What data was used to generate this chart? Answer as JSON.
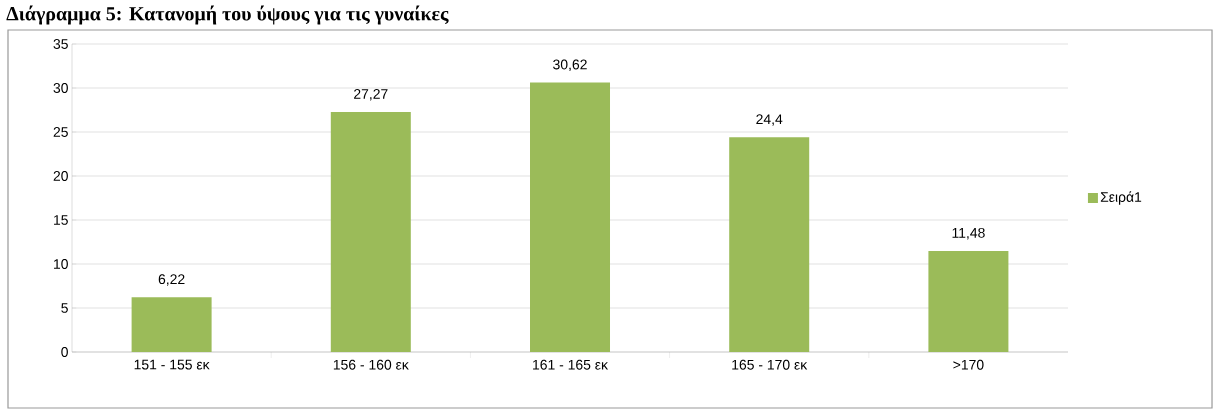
{
  "chart_data": {
    "type": "bar",
    "title": "Διάγραμμα 5: Κατανομή του ύψους για τις γυναίκες",
    "categories": [
      "151 - 155 εκ",
      "156 - 160 εκ",
      "161 - 165 εκ",
      "165 - 170 εκ",
      ">170"
    ],
    "series": [
      {
        "name": "Σειρά1",
        "color": "#9bbb59",
        "values": [
          6.22,
          27.27,
          30.62,
          24.4,
          11.48
        ],
        "value_labels": [
          "6,22",
          "27,27",
          "30,62",
          "24,4",
          "11,48"
        ]
      }
    ],
    "ylim": [
      0,
      35
    ],
    "yticks": [
      0,
      5,
      10,
      15,
      20,
      25,
      30,
      35
    ],
    "grid": "y",
    "legend": "right"
  }
}
